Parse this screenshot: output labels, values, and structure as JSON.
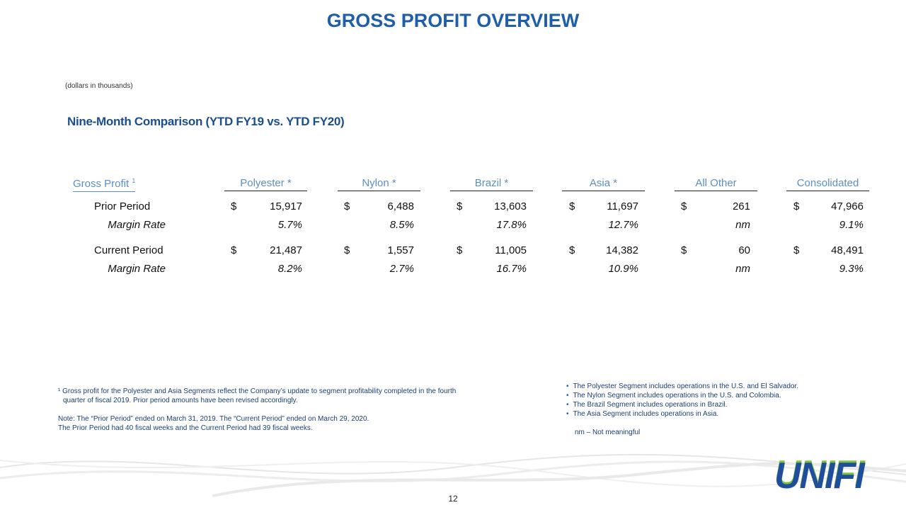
{
  "header": {
    "title": "GROSS PROFIT OVERVIEW",
    "units": "(dollars in thousands)",
    "section": "Nine-Month Comparison (YTD FY19 vs. YTD FY20)"
  },
  "table": {
    "corner": "Gross Profit",
    "corner_note": "1",
    "columns": [
      "Polyester *",
      "Nylon *",
      "Brazil *",
      "Asia *",
      "All Other",
      "Consolidated"
    ],
    "rows": [
      {
        "label": "Prior Period",
        "cells": [
          [
            "$",
            "15,917"
          ],
          [
            "$",
            "6,488"
          ],
          [
            "$",
            "13,603"
          ],
          [
            "$",
            "11,697"
          ],
          [
            "$",
            "261"
          ],
          [
            "$",
            "47,966"
          ]
        ]
      },
      {
        "label": "Margin Rate",
        "cells": [
          "5.7%",
          "8.5%",
          "17.8%",
          "12.7%",
          "nm",
          "9.1%"
        ]
      },
      {
        "label": "Current Period",
        "cells": [
          [
            "$",
            "21,487"
          ],
          [
            "$",
            "1,557"
          ],
          [
            "$",
            "11,005"
          ],
          [
            "$",
            "14,382"
          ],
          [
            "$",
            "60"
          ],
          [
            "$",
            "48,491"
          ]
        ]
      },
      {
        "label": "Margin Rate",
        "cells": [
          "8.2%",
          "2.7%",
          "16.7%",
          "10.9%",
          "nm",
          "9.3%"
        ]
      }
    ]
  },
  "footnote": [
    "¹ Gross profit for the Polyester and Asia Segments reflect the Company’s update to segment profitability completed in the fourth",
    "quarter of fiscal 2019.  Prior period amounts have been revised accordingly."
  ],
  "note": [
    "Note: The “Prior Period” ended on March 31, 2019. The “Current Period” ended on March 29, 2020.",
    "The Prior Period had 40 fiscal weeks and the Current Period had 39 fiscal weeks."
  ],
  "segments": [
    "The Polyester Segment includes operations in the U.S. and El Salvador.",
    "The Nylon Segment includes operations in the U.S. and Colombia.",
    "The Brazil Segment includes operations in Brazil.",
    "The Asia Segment includes operations in Asia."
  ],
  "nm_note": "nm – Not meaningful",
  "logo": "UNIFI",
  "page_number": "12"
}
